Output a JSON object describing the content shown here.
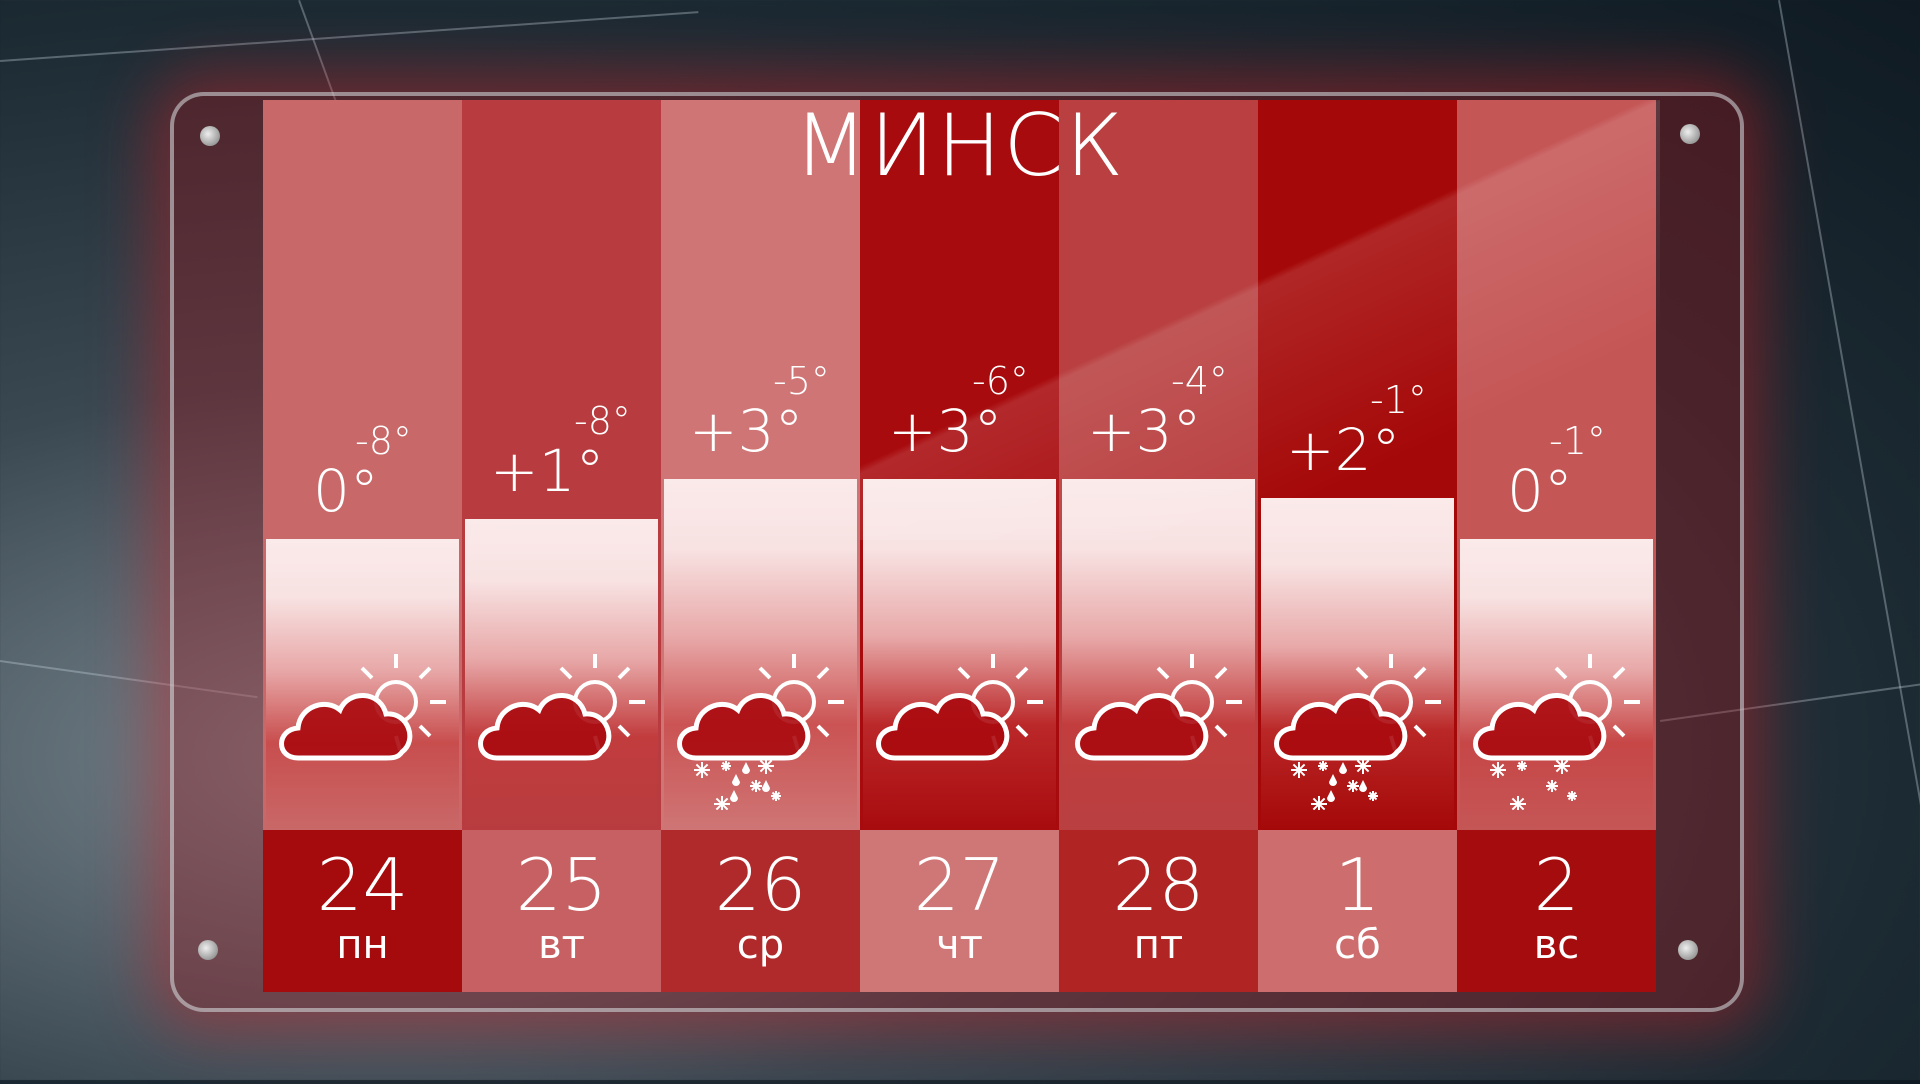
{
  "title": "МИНСК",
  "days": [
    {
      "date": "24",
      "weekday": "пн",
      "high": "0°",
      "low": "-8°",
      "icon": "cloud-sun-icon",
      "precip": false,
      "bar_level": 0,
      "top_color": "#c96868",
      "bottom_color": "#a50a0d"
    },
    {
      "date": "25",
      "weekday": "вт",
      "high": "+1°",
      "low": "-8°",
      "icon": "cloud-sun-icon",
      "precip": false,
      "bar_level": 1,
      "top_color": "#b83c3f",
      "bottom_color": "#c66062"
    },
    {
      "date": "26",
      "weekday": "ср",
      "high": "+3°",
      "low": "-5°",
      "icon": "cloud-sun-sleet-icon",
      "precip": true,
      "bar_level": 3,
      "top_color": "#cf7575",
      "bottom_color": "#b02a2c"
    },
    {
      "date": "27",
      "weekday": "чт",
      "high": "+3°",
      "low": "-6°",
      "icon": "cloud-sun-icon",
      "precip": false,
      "bar_level": 3,
      "top_color": "#a80b0e",
      "bottom_color": "#cf7777"
    },
    {
      "date": "28",
      "weekday": "пт",
      "high": "+3°",
      "low": "-4°",
      "icon": "cloud-sun-icon",
      "precip": false,
      "bar_level": 3,
      "top_color": "#b93f40",
      "bottom_color": "#b02424"
    },
    {
      "date": "1",
      "weekday": "сб",
      "high": "+2°",
      "low": "-1°",
      "icon": "cloud-sun-sleet-icon",
      "precip": true,
      "bar_level": 2,
      "top_color": "#a50808",
      "bottom_color": "#cd6d6d"
    },
    {
      "date": "2",
      "weekday": "вс",
      "high": "0°",
      "low": "-1°",
      "icon": "cloud-sun-snow-icon",
      "precip": true,
      "bar_level": 0,
      "top_color": "#c55656",
      "bottom_color": "#a50c0e"
    }
  ]
}
